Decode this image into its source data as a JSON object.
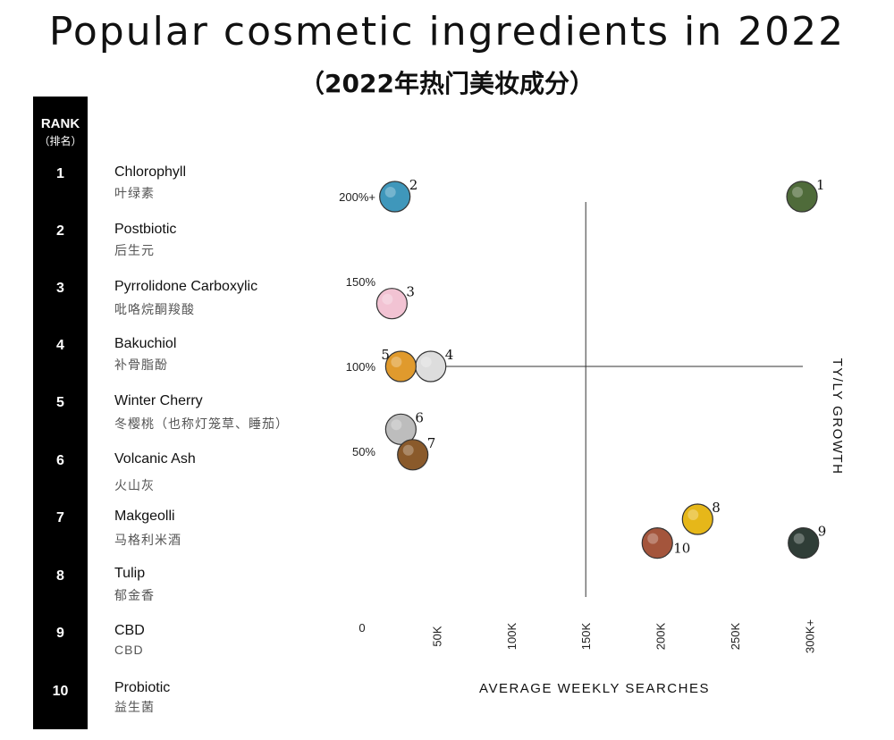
{
  "title": "Popular cosmetic ingredients in 2022",
  "subtitle": "（2022年热门美妆成分）",
  "rank_header": {
    "en": "RANK",
    "zh": "（排名）"
  },
  "ingredients": [
    {
      "rank": "1",
      "en": "Chlorophyll",
      "zh": "叶绿素"
    },
    {
      "rank": "2",
      "en": "Postbiotic",
      "zh": "后生元"
    },
    {
      "rank": "3",
      "en": "Pyrrolidone Carboxylic",
      "zh": "吡咯烷酮羧酸"
    },
    {
      "rank": "4",
      "en": "Bakuchiol",
      "zh": "补骨脂酚"
    },
    {
      "rank": "5",
      "en": "Winter Cherry",
      "zh": "冬樱桃（也称灯笼草、睡茄）"
    },
    {
      "rank": "6",
      "en": "Volcanic Ash",
      "zh": "火山灰"
    },
    {
      "rank": "7",
      "en": "Makgeolli",
      "zh": "马格利米酒"
    },
    {
      "rank": "8",
      "en": "Tulip",
      "zh": "郁金香"
    },
    {
      "rank": "9",
      "en": "CBD",
      "zh": "CBD"
    },
    {
      "rank": "10",
      "en": "Probiotic",
      "zh": "益生菌"
    }
  ],
  "chart_data": {
    "type": "scatter",
    "title": "Popular cosmetic ingredients in 2022",
    "xlabel": "AVERAGE WEEKLY SEARCHES",
    "ylabel": "TY/LY GROWTH",
    "x_ticks": [
      "0",
      "50K",
      "100K",
      "150K",
      "200K",
      "250K",
      "300K+"
    ],
    "y_ticks": [
      "200%+",
      "150%",
      "100%",
      "50%"
    ],
    "xlim": [
      0,
      300
    ],
    "ylim": [
      0,
      200
    ],
    "x_unit": "K",
    "y_unit": "%",
    "crosshair": {
      "x": 150,
      "y": 100
    },
    "points": [
      {
        "label": "1",
        "name": "Chlorophyll",
        "x": 295,
        "y": 200,
        "color": "#4f6b3a"
      },
      {
        "label": "2",
        "name": "Postbiotic",
        "x": 22,
        "y": 200,
        "color": "#3f97bb"
      },
      {
        "label": "3",
        "name": "Pyrrolidone Carboxylic",
        "x": 20,
        "y": 137,
        "color": "#f2c3d3"
      },
      {
        "label": "4",
        "name": "Bakuchiol",
        "x": 46,
        "y": 100,
        "color": "#dddddd"
      },
      {
        "label": "5",
        "name": "Winter Cherry",
        "x": 26,
        "y": 100,
        "color": "#e09a2d"
      },
      {
        "label": "6",
        "name": "Volcanic Ash",
        "x": 26,
        "y": 63,
        "color": "#bdbdbd"
      },
      {
        "label": "7",
        "name": "Makgeolli",
        "x": 34,
        "y": 48,
        "color": "#8a5a2b"
      },
      {
        "label": "8",
        "name": "Tulip",
        "x": 225,
        "y": 10,
        "color": "#e6b719"
      },
      {
        "label": "9",
        "name": "CBD",
        "x": 296,
        "y": -4,
        "color": "#2f3d37"
      },
      {
        "label": "10",
        "name": "Probiotic",
        "x": 198,
        "y": -4,
        "color": "#a4553c"
      }
    ]
  }
}
